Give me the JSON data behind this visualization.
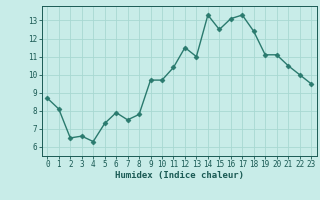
{
  "x": [
    0,
    1,
    2,
    3,
    4,
    5,
    6,
    7,
    8,
    9,
    10,
    11,
    12,
    13,
    14,
    15,
    16,
    17,
    18,
    19,
    20,
    21,
    22,
    23
  ],
  "y": [
    8.7,
    8.1,
    6.5,
    6.6,
    6.3,
    7.3,
    7.9,
    7.5,
    7.8,
    9.7,
    9.7,
    10.4,
    11.5,
    11.0,
    13.3,
    12.5,
    13.1,
    13.3,
    12.4,
    11.1,
    11.1,
    10.5,
    10.0,
    9.5
  ],
  "line_color": "#2a7a6e",
  "marker": "D",
  "marker_size": 2.5,
  "linewidth": 1.0,
  "bg_color": "#c8ece8",
  "grid_color": "#a8d8d2",
  "xlabel": "Humidex (Indice chaleur)",
  "xlim": [
    -0.5,
    23.5
  ],
  "ylim": [
    5.5,
    13.8
  ],
  "yticks": [
    6,
    7,
    8,
    9,
    10,
    11,
    12,
    13
  ],
  "xticks": [
    0,
    1,
    2,
    3,
    4,
    5,
    6,
    7,
    8,
    9,
    10,
    11,
    12,
    13,
    14,
    15,
    16,
    17,
    18,
    19,
    20,
    21,
    22,
    23
  ],
  "tick_color": "#1a5a54",
  "label_fontsize": 5.5,
  "xlabel_fontsize": 6.5
}
